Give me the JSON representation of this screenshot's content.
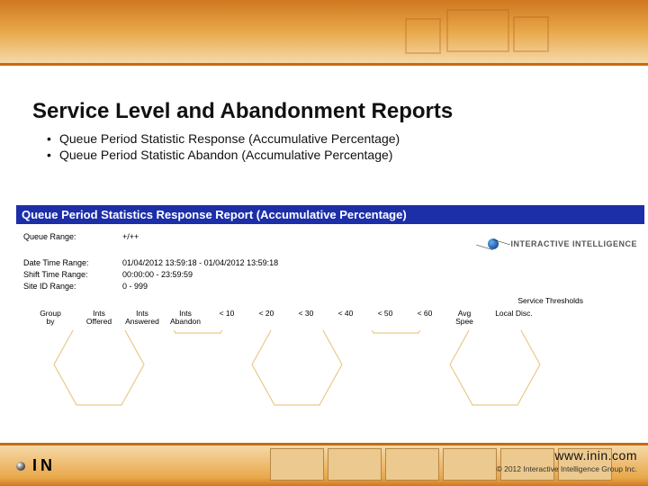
{
  "slide": {
    "title": "Service Level and Abandonment Reports",
    "bullets": [
      "Queue Period Statistic Response (Accumulative Percentage)",
      "Queue Period Statistic Abandon (Accumulative Percentage)"
    ]
  },
  "report": {
    "header": "Queue Period Statistics Response Report (Accumulative Percentage)",
    "brand": "INTERACTIVE INTELLIGENCE",
    "meta": {
      "queueRangeLabel": "Queue Range:",
      "queueRangeValue": "+/++",
      "dateTimeLabel": "Date Time Range:",
      "dateTimeValue": "01/04/2012 13:59:18  -  01/04/2012 13:59:18",
      "shiftLabel": "Shift Time Range:",
      "shiftValue": "00:00:00 - 23:59:59",
      "siteLabel": "Site ID Range:",
      "siteValue": "0 - 999"
    },
    "thresholdsTitle": "Service Thresholds",
    "columns": {
      "group": "Group\nby",
      "offered": "Ints\nOffered",
      "answered": "Ints\nAnswered",
      "abandon": "Ints\nAbandon",
      "t10": "< 10",
      "t20": "< 20",
      "t30": "< 30",
      "t40": "< 40",
      "t50": "< 50",
      "t60": "< 60",
      "avg": "Avg\nSpee",
      "localDisc": "Local Disc."
    }
  },
  "footer": {
    "brandLetters": "IN",
    "url": "www.inin.com",
    "copy": "© 2012 Interactive Intelligence Group Inc."
  },
  "colors": {
    "brandOrange": "#d07820",
    "bannerMid": "#e8a84a",
    "bannerLight": "#f5d9a8",
    "reportHeader": "#1c2ea8",
    "decoStroke": "#e8c98a"
  }
}
